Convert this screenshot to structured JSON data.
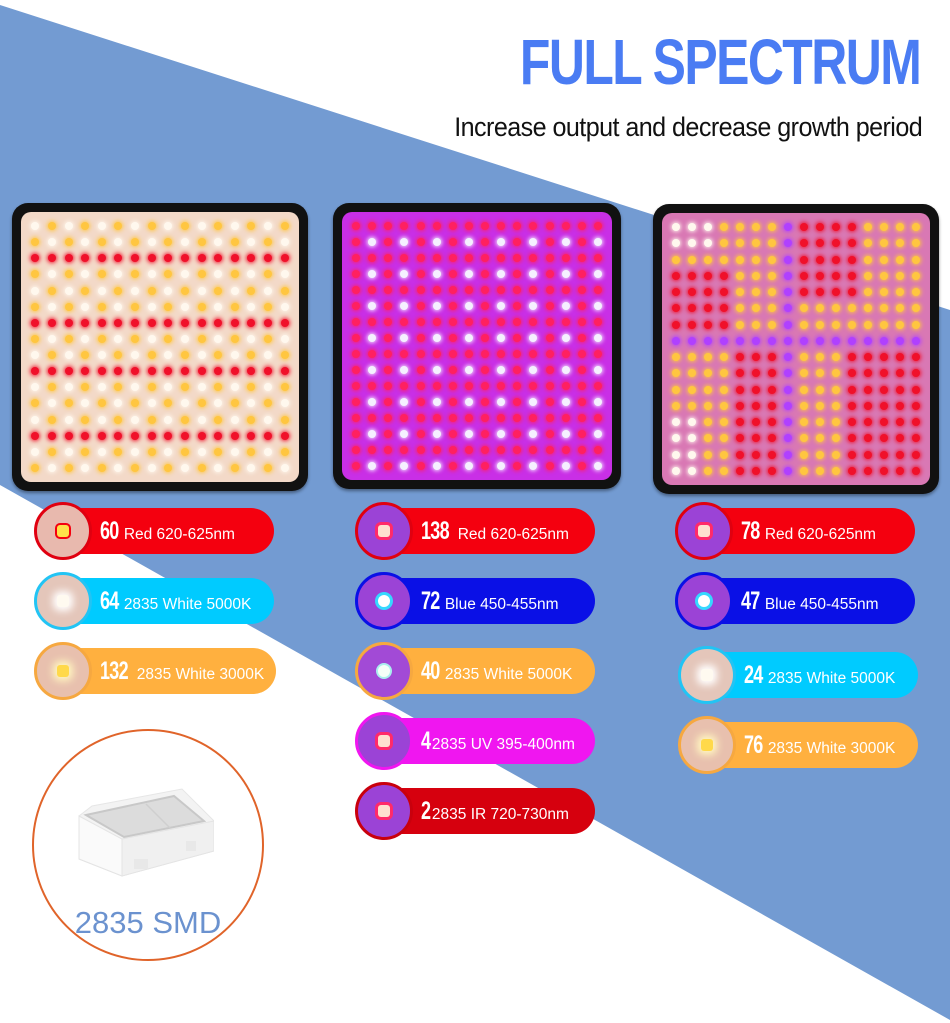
{
  "header": {
    "title": "FULL SPECTRUM",
    "subtitle": "Increase output and decrease growth period"
  },
  "colors": {
    "band": "#739bd2",
    "title": "#4a7cf3",
    "red": "#f4000f",
    "cyan": "#00cbff",
    "orange": "#ffb03f",
    "blue": "#0a10e6",
    "magenta": "#f016f0",
    "darkred": "#d6000e"
  },
  "panels": [
    {
      "name": "warm-white-panel",
      "background": "#f3d9c8",
      "badges": [
        {
          "count": "60",
          "label": "Red 620-625nm",
          "color": "#f4000f",
          "border": "#e00010",
          "chip": "#ffe04a"
        },
        {
          "count": "64",
          "label": "2835 White 5000K",
          "color": "#00cbff",
          "border": "#22c4f4",
          "chip": "#fffaf0"
        },
        {
          "count": "132",
          "label": "2835 White 3000K",
          "color": "#ffb03f",
          "border": "#f6a840",
          "chip": "#ffd94a"
        }
      ]
    },
    {
      "name": "purple-panel",
      "background": "#c92fe6",
      "badges": [
        {
          "count": "138",
          "label": "Red 620-625nm",
          "color": "#f4000f",
          "border": "#e00010",
          "chip": "#ff5a7a"
        },
        {
          "count": "72",
          "label": "Blue 450-455nm",
          "color": "#0a10e6",
          "border": "#0a10e6",
          "chip": "#8ff0ff"
        },
        {
          "count": "40",
          "label": "2835 White 5000K",
          "color": "#ffb03f",
          "border": "#f6a840",
          "chip": "#f0fff8"
        },
        {
          "count": "4",
          "label": "2835 UV 395-400nm",
          "color": "#f016f0",
          "border": "#f016f0",
          "chip": "#ff5a7a"
        },
        {
          "count": "2",
          "label": "2835 IR 720-730nm",
          "color": "#d6000e",
          "border": "#c9000d",
          "chip": "#ff5a7a"
        }
      ]
    },
    {
      "name": "mixed-panel",
      "background": "#d978b4",
      "badges": [
        {
          "count": "78",
          "label": "Red 620-625nm",
          "color": "#f4000f",
          "border": "#e00010",
          "chip": "#ff5a7a"
        },
        {
          "count": "47",
          "label": "Blue 450-455nm",
          "color": "#0a10e6",
          "border": "#0a10e6",
          "chip": "#8ff0ff"
        },
        {
          "count": "24",
          "label": "2835 White 5000K",
          "color": "#00cbff",
          "border": "#22c4f4",
          "chip": "#fffaf0"
        },
        {
          "count": "76",
          "label": "2835 White 3000K",
          "color": "#ffb03f",
          "border": "#f6a840",
          "chip": "#ffd94a"
        }
      ]
    }
  ],
  "smd": {
    "label": "2835 SMD"
  }
}
